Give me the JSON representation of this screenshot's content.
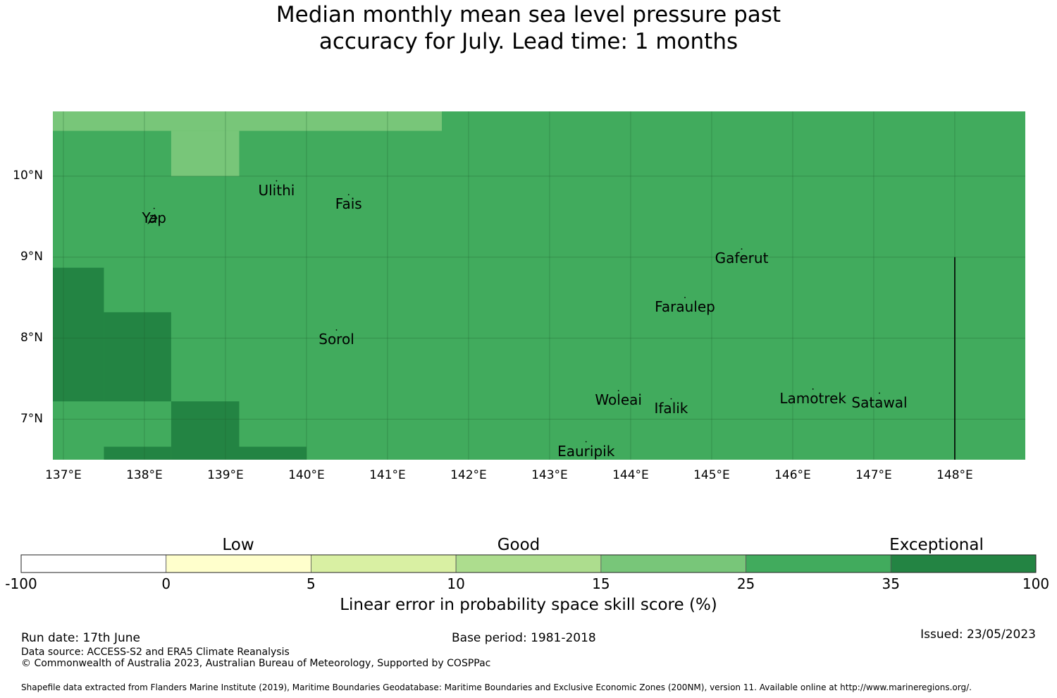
{
  "title": {
    "line1": "Median monthly mean sea level pressure past",
    "line2": "accuracy for July. Lead time: 1 months"
  },
  "map": {
    "lat_ticks": [
      "10°N",
      "9°N",
      "8°N",
      "7°N"
    ],
    "lon_ticks": [
      "137°E",
      "138°E",
      "139°E",
      "140°E",
      "141°E",
      "142°E",
      "143°E",
      "144°E",
      "145°E",
      "146°E",
      "147°E",
      "148°E"
    ],
    "places": [
      {
        "name": "Ulithi",
        "lon": 139.63,
        "lat": 9.82
      },
      {
        "name": "Fais",
        "lon": 140.52,
        "lat": 9.65
      },
      {
        "name": "Yap",
        "lon": 138.12,
        "lat": 9.48
      },
      {
        "name": "Gaferut",
        "lon": 145.37,
        "lat": 8.98
      },
      {
        "name": "Faraulep",
        "lon": 144.67,
        "lat": 8.38
      },
      {
        "name": "Sorol",
        "lon": 140.37,
        "lat": 7.98
      },
      {
        "name": "Woleai",
        "lon": 143.85,
        "lat": 7.23
      },
      {
        "name": "Ifalik",
        "lon": 144.5,
        "lat": 7.13
      },
      {
        "name": "Lamotrek",
        "lon": 146.25,
        "lat": 7.25
      },
      {
        "name": "Satawal",
        "lon": 147.07,
        "lat": 7.2
      },
      {
        "name": "Eauripik",
        "lon": 143.45,
        "lat": 6.6
      }
    ],
    "boundary_line": {
      "lon": 148.0,
      "lat_from": 6.5,
      "lat_to": 9.0
    },
    "background_category": "25-35",
    "cells": [
      {
        "lon0": 136.87,
        "lon1": 141.67,
        "lat0": 10.56,
        "lat1": 10.8,
        "category": "15-25"
      },
      {
        "lon0": 138.33,
        "lon1": 139.17,
        "lat0": 10.0,
        "lat1": 10.56,
        "category": "15-25"
      },
      {
        "lon0": 136.87,
        "lon1": 137.5,
        "lat0": 7.22,
        "lat1": 8.87,
        "category": "35-100"
      },
      {
        "lon0": 137.5,
        "lon1": 138.33,
        "lat0": 7.22,
        "lat1": 8.32,
        "category": "35-100"
      },
      {
        "lon0": 138.33,
        "lon1": 139.17,
        "lat0": 6.5,
        "lat1": 7.22,
        "category": "35-100"
      },
      {
        "lon0": 137.5,
        "lon1": 138.33,
        "lat0": 6.5,
        "lat1": 6.66,
        "category": "35-100"
      },
      {
        "lon0": 139.17,
        "lon1": 140.0,
        "lat0": 6.5,
        "lat1": 6.66,
        "category": "35-100"
      }
    ]
  },
  "colorbar": {
    "categories": [
      "Low",
      "Good",
      "Exceptional"
    ],
    "tick_labels": [
      "-100",
      "0",
      "5",
      "10",
      "15",
      "25",
      "35",
      "100"
    ],
    "bins": [
      {
        "range": "-100-0",
        "color": "#ffffff"
      },
      {
        "range": "0-5",
        "color": "#ffffcc"
      },
      {
        "range": "5-10",
        "color": "#d9f0a3"
      },
      {
        "range": "10-15",
        "color": "#addd8e"
      },
      {
        "range": "15-25",
        "color": "#78c679"
      },
      {
        "range": "25-35",
        "color": "#41ab5d"
      },
      {
        "range": "35-100",
        "color": "#238443"
      }
    ],
    "title": "Linear error in probability space skill score (%)"
  },
  "footer": {
    "run_date": "Run date: 17th June",
    "base_period": "Base period: 1981-2018",
    "issued": "Issued: 23/05/2023",
    "data_source": "Data source: ACCESS-S2 and ERA5 Climate Reanalysis",
    "copyright": "© Commonwealth of Australia 2023, Australian Bureau of Meteorology, Supported by COSPPac",
    "shapefile": "Shapefile data extracted from Flanders Marine Institute (2019), Maritime Boundaries Geodatabase: Maritime Boundaries and Exclusive Economic Zones (200NM), version 11. Available online at http://www.marineregions.org/."
  }
}
